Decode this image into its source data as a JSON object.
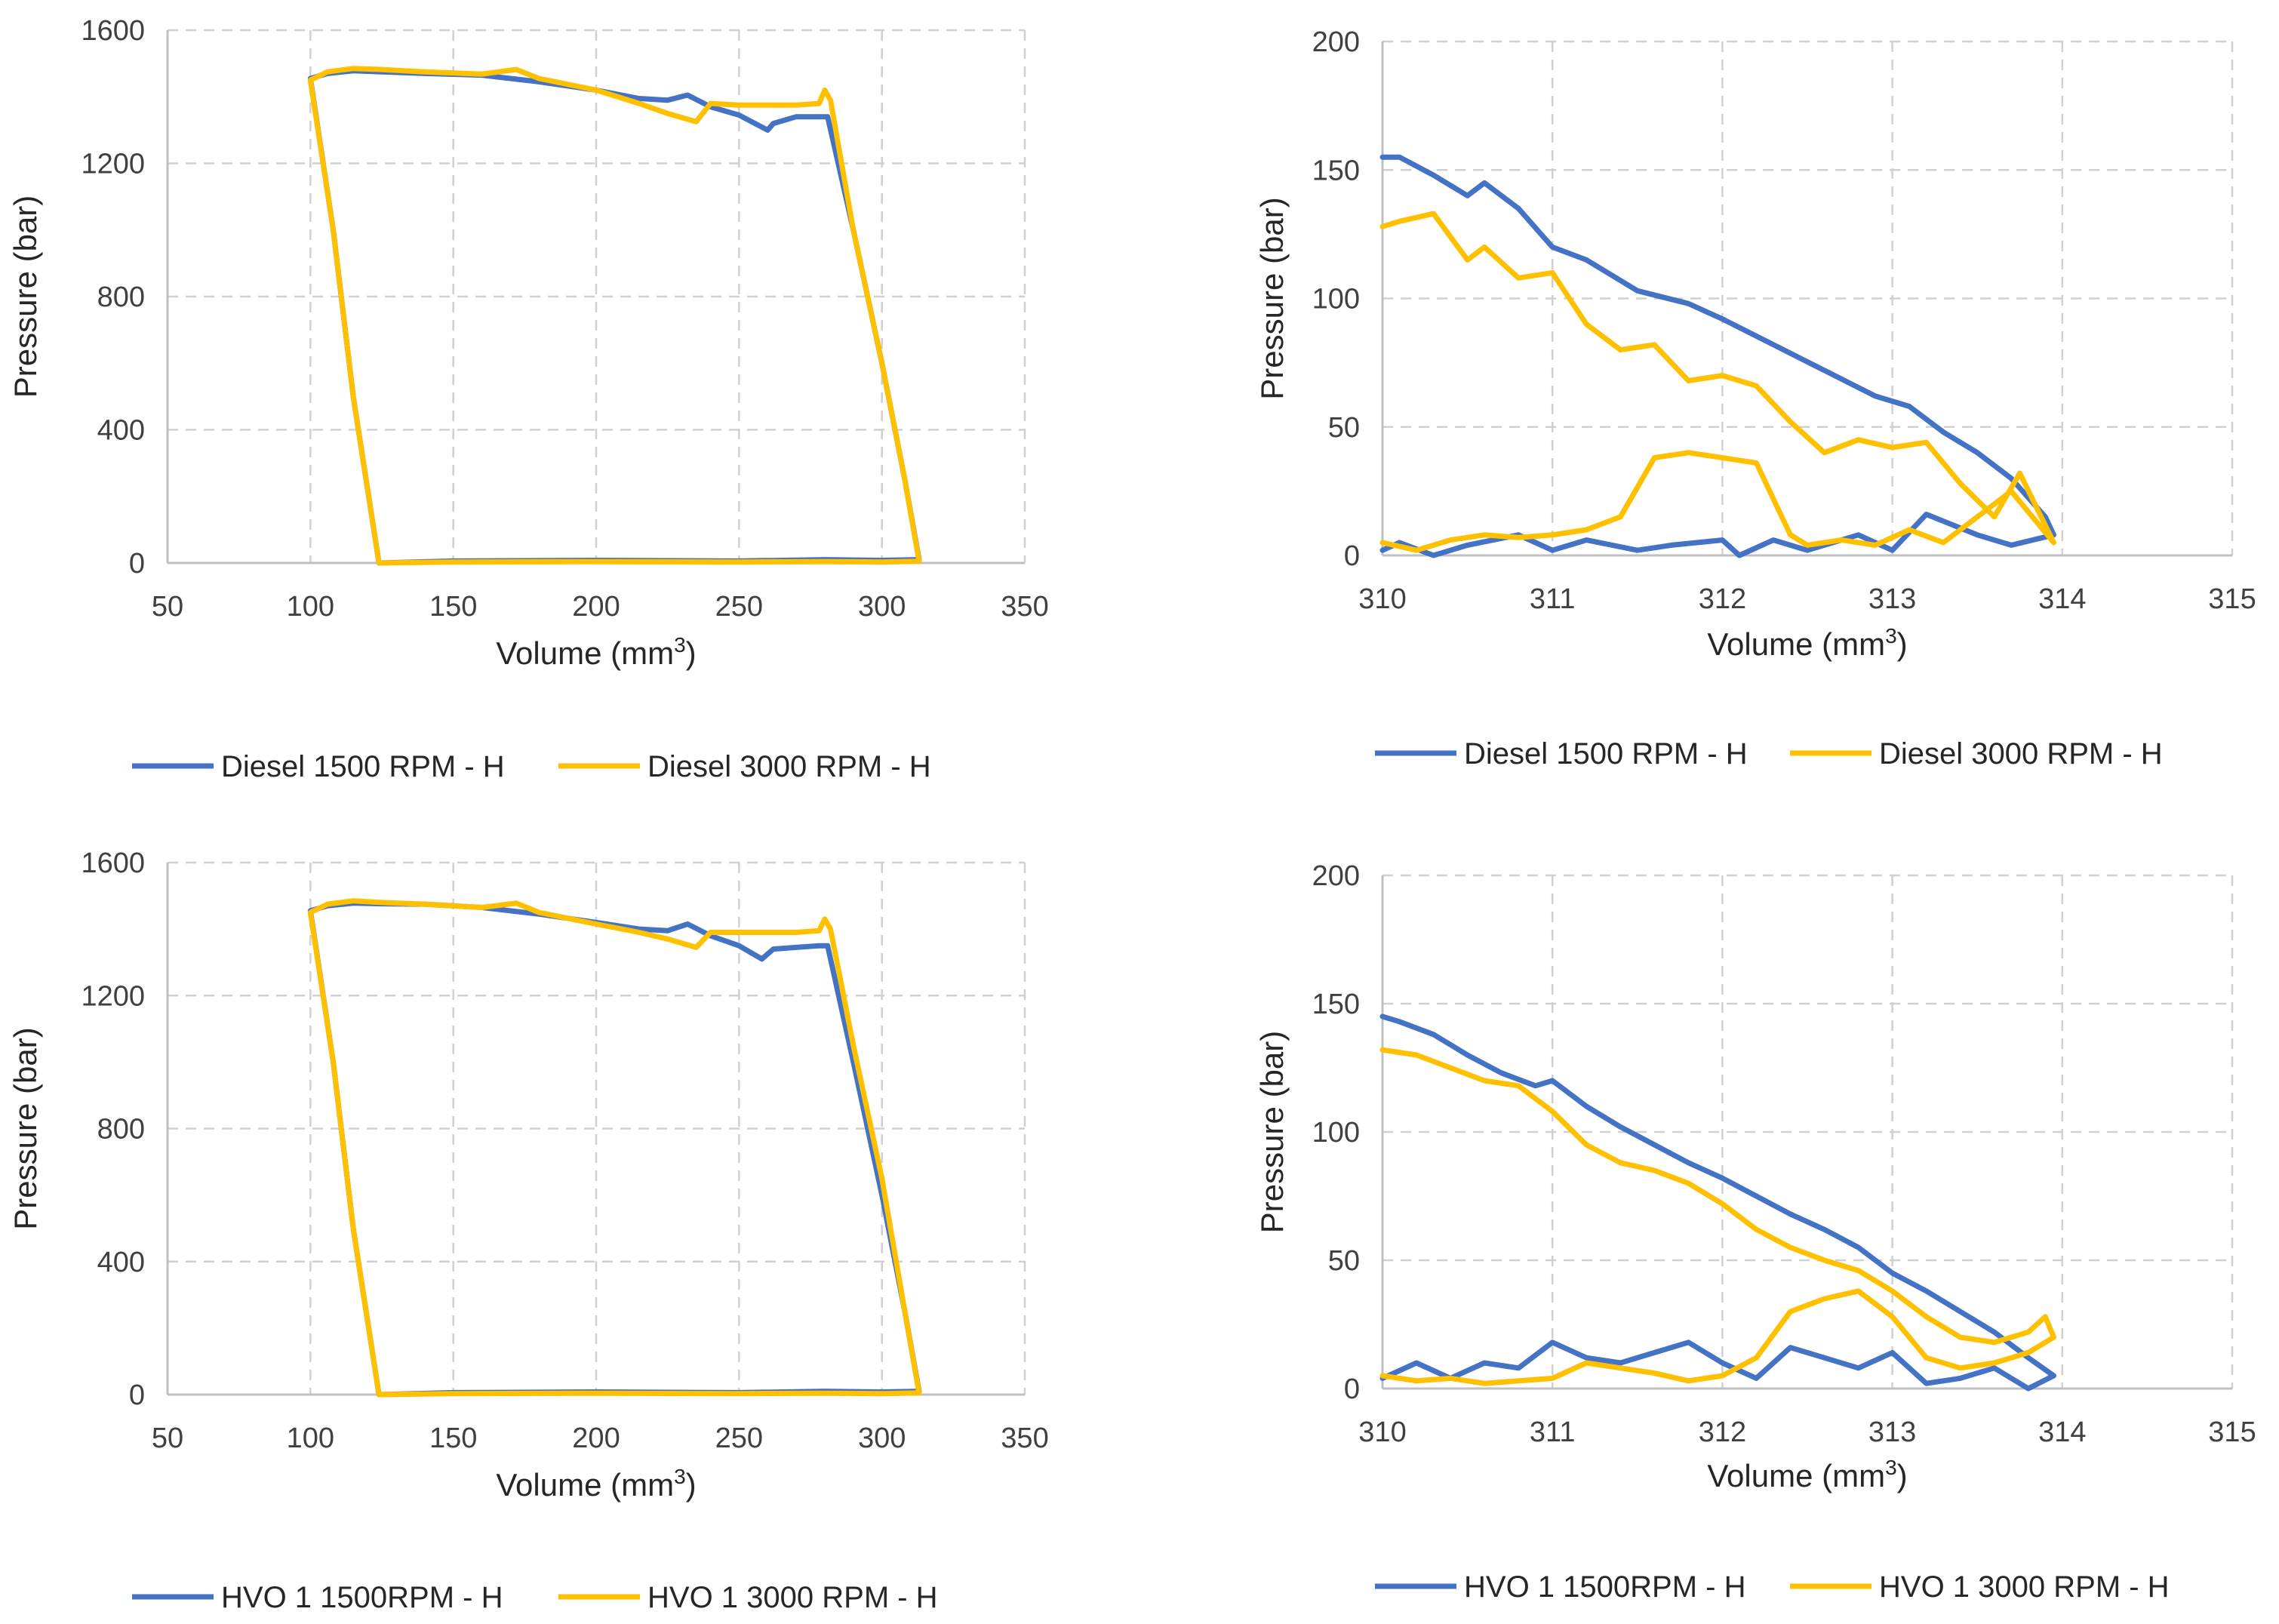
{
  "colors": {
    "series_a": "#4472C4",
    "series_b": "#FFC000",
    "grid": "#d0d0d0",
    "axis": "#bfbfbf",
    "text": "#404040"
  },
  "chart_data": [
    {
      "id": "diesel-full",
      "type": "line",
      "title": "",
      "xlabel": "Volume (mm",
      "xlabel_sup": "3",
      "xlabel_close": ")",
      "ylabel": "Pressure (bar)",
      "xlim": [
        50,
        350
      ],
      "ylim": [
        0,
        1600
      ],
      "xticks": [
        50,
        100,
        150,
        200,
        250,
        300,
        350
      ],
      "yticks": [
        0,
        400,
        800,
        1200,
        1600
      ],
      "grid": true,
      "legend_position": "bottom",
      "series": [
        {
          "name": "Diesel 1500 RPM - H",
          "color": "#4472C4",
          "x": [
            100,
            106,
            115,
            125,
            140,
            160,
            180,
            200,
            215,
            225,
            232,
            240,
            250,
            260,
            262,
            270,
            278,
            281,
            290,
            300,
            308,
            313,
            300,
            280,
            250,
            200,
            150,
            124,
            115,
            108,
            100
          ],
          "y": [
            1455,
            1470,
            1478,
            1475,
            1470,
            1465,
            1445,
            1420,
            1395,
            1390,
            1405,
            1370,
            1345,
            1300,
            1320,
            1340,
            1340,
            1340,
            1000,
            600,
            250,
            10,
            8,
            10,
            6,
            8,
            6,
            0,
            500,
            1000,
            1455
          ]
        },
        {
          "name": "Diesel 3000 RPM - H",
          "color": "#FFC000",
          "x": [
            100,
            106,
            115,
            125,
            140,
            160,
            172,
            180,
            200,
            215,
            225,
            235,
            240,
            250,
            260,
            270,
            278,
            280,
            282,
            290,
            300,
            308,
            313,
            300,
            280,
            250,
            200,
            150,
            124,
            115,
            108,
            100
          ],
          "y": [
            1450,
            1475,
            1485,
            1482,
            1475,
            1468,
            1482,
            1455,
            1420,
            1380,
            1350,
            1325,
            1380,
            1375,
            1375,
            1375,
            1380,
            1420,
            1390,
            1000,
            600,
            250,
            5,
            3,
            4,
            3,
            4,
            3,
            0,
            500,
            1000,
            1450
          ]
        }
      ]
    },
    {
      "id": "diesel-zoom",
      "type": "line",
      "title": "",
      "xlabel": "Volume (mm",
      "xlabel_sup": "3",
      "xlabel_close": ")",
      "ylabel": "Pressure (bar)",
      "xlim": [
        310,
        315
      ],
      "ylim": [
        0,
        200
      ],
      "xticks": [
        310,
        311,
        312,
        313,
        314,
        315
      ],
      "yticks": [
        0,
        50,
        100,
        150,
        200
      ],
      "grid": true,
      "legend_position": "bottom",
      "series": [
        {
          "name": "Diesel 1500 RPM - H",
          "color": "#4472C4",
          "x": [
            310,
            310.1,
            310.3,
            310.5,
            310.6,
            310.8,
            311,
            311.2,
            311.5,
            311.8,
            312,
            312.3,
            312.6,
            312.9,
            313.1,
            313.3,
            313.5,
            313.7,
            313.9,
            313.95,
            313.7,
            313.5,
            313.2,
            313,
            312.8,
            312.5,
            312.3,
            312.1,
            312,
            311.7,
            311.5,
            311.2,
            311,
            310.8,
            310.5,
            310.3,
            310.1,
            310
          ],
          "y": [
            155,
            155,
            148,
            140,
            145,
            135,
            120,
            115,
            103,
            98,
            92,
            82,
            72,
            62,
            58,
            48,
            40,
            30,
            15,
            8,
            4,
            8,
            16,
            2,
            8,
            2,
            6,
            0,
            6,
            4,
            2,
            6,
            2,
            8,
            4,
            0,
            5,
            2
          ]
        },
        {
          "name": "Diesel 3000 RPM - H",
          "color": "#FFC000",
          "x": [
            310,
            310.1,
            310.3,
            310.5,
            310.6,
            310.8,
            311,
            311.2,
            311.4,
            311.6,
            311.8,
            312,
            312.2,
            312.4,
            312.6,
            312.8,
            313,
            313.2,
            313.4,
            313.6,
            313.75,
            313.95,
            313.7,
            313.5,
            313.3,
            313.1,
            312.9,
            312.7,
            312.5,
            312.4,
            312.2,
            312,
            311.8,
            311.6,
            311.4,
            311.2,
            311,
            310.8,
            310.6,
            310.4,
            310.2,
            310
          ],
          "y": [
            128,
            130,
            133,
            115,
            120,
            108,
            110,
            90,
            80,
            82,
            68,
            70,
            66,
            52,
            40,
            45,
            42,
            44,
            28,
            15,
            32,
            5,
            25,
            15,
            5,
            10,
            4,
            6,
            4,
            8,
            36,
            38,
            40,
            38,
            15,
            10,
            8,
            7,
            8,
            6,
            2,
            5
          ]
        }
      ]
    },
    {
      "id": "hvo-full",
      "type": "line",
      "title": "",
      "xlabel": "Volume (mm",
      "xlabel_sup": "3",
      "xlabel_close": ")",
      "ylabel": "Pressure (bar)",
      "xlim": [
        50,
        350
      ],
      "ylim": [
        0,
        1600
      ],
      "xticks": [
        50,
        100,
        150,
        200,
        250,
        300,
        350
      ],
      "yticks": [
        0,
        400,
        800,
        1200,
        1600
      ],
      "grid": true,
      "legend_position": "bottom",
      "series": [
        {
          "name": "HVO 1 1500RPM - H",
          "color": "#4472C4",
          "x": [
            100,
            106,
            115,
            125,
            140,
            160,
            180,
            200,
            215,
            225,
            232,
            240,
            250,
            258,
            262,
            270,
            278,
            281,
            290,
            300,
            308,
            313,
            300,
            280,
            250,
            200,
            150,
            124,
            115,
            108,
            100
          ],
          "y": [
            1455,
            1470,
            1478,
            1476,
            1475,
            1465,
            1445,
            1420,
            1400,
            1395,
            1415,
            1380,
            1350,
            1310,
            1340,
            1345,
            1350,
            1350,
            1000,
            600,
            250,
            10,
            8,
            10,
            6,
            8,
            6,
            0,
            500,
            1000,
            1455
          ]
        },
        {
          "name": "HVO 1 3000 RPM - H",
          "color": "#FFC000",
          "x": [
            100,
            106,
            115,
            125,
            140,
            160,
            172,
            180,
            200,
            215,
            225,
            235,
            240,
            250,
            260,
            270,
            278,
            280,
            282,
            290,
            300,
            308,
            313,
            300,
            280,
            250,
            200,
            150,
            124,
            115,
            108,
            100
          ],
          "y": [
            1450,
            1475,
            1485,
            1480,
            1475,
            1465,
            1478,
            1450,
            1415,
            1390,
            1370,
            1345,
            1390,
            1390,
            1390,
            1390,
            1395,
            1430,
            1400,
            1050,
            650,
            250,
            5,
            3,
            4,
            3,
            4,
            3,
            0,
            500,
            1000,
            1450
          ]
        }
      ]
    },
    {
      "id": "hvo-zoom",
      "type": "line",
      "title": "",
      "xlabel": "Volume (mm",
      "xlabel_sup": "3",
      "xlabel_close": ")",
      "ylabel": "Pressure (bar)",
      "xlim": [
        310,
        315
      ],
      "ylim": [
        0,
        200
      ],
      "xticks": [
        310,
        311,
        312,
        313,
        314,
        315
      ],
      "yticks": [
        0,
        50,
        100,
        150,
        200
      ],
      "grid": true,
      "legend_position": "bottom",
      "series": [
        {
          "name": "HVO 1 1500RPM - H",
          "color": "#4472C4",
          "x": [
            310,
            310.1,
            310.3,
            310.5,
            310.7,
            310.9,
            311,
            311.2,
            311.4,
            311.6,
            311.8,
            312,
            312.2,
            312.4,
            312.6,
            312.8,
            313,
            313.2,
            313.4,
            313.6,
            313.8,
            313.95,
            313.8,
            313.6,
            313.4,
            313.2,
            313,
            312.8,
            312.6,
            312.4,
            312.2,
            312,
            311.8,
            311.6,
            311.4,
            311.2,
            311,
            310.8,
            310.6,
            310.4,
            310.2,
            310
          ],
          "y": [
            145,
            143,
            138,
            130,
            123,
            118,
            120,
            110,
            102,
            95,
            88,
            82,
            75,
            68,
            62,
            55,
            45,
            38,
            30,
            22,
            12,
            5,
            0,
            8,
            4,
            2,
            14,
            8,
            12,
            16,
            4,
            10,
            18,
            14,
            10,
            12,
            18,
            8,
            10,
            4,
            10,
            4
          ]
        },
        {
          "name": "HVO 1 3000 RPM - H",
          "color": "#FFC000",
          "x": [
            310,
            310.2,
            310.4,
            310.6,
            310.8,
            311,
            311.2,
            311.4,
            311.6,
            311.8,
            312,
            312.2,
            312.4,
            312.6,
            312.8,
            313,
            313.2,
            313.4,
            313.6,
            313.8,
            313.9,
            313.95,
            313.8,
            313.6,
            313.4,
            313.2,
            313,
            312.8,
            312.6,
            312.4,
            312.2,
            312,
            311.8,
            311.6,
            311.4,
            311.2,
            311,
            310.8,
            310.6,
            310.4,
            310.2,
            310
          ],
          "y": [
            132,
            130,
            125,
            120,
            118,
            108,
            95,
            88,
            85,
            80,
            72,
            62,
            55,
            50,
            46,
            38,
            28,
            20,
            18,
            22,
            28,
            20,
            14,
            10,
            8,
            12,
            28,
            38,
            35,
            30,
            12,
            5,
            3,
            6,
            8,
            10,
            4,
            3,
            2,
            4,
            3,
            5
          ]
        }
      ]
    }
  ]
}
